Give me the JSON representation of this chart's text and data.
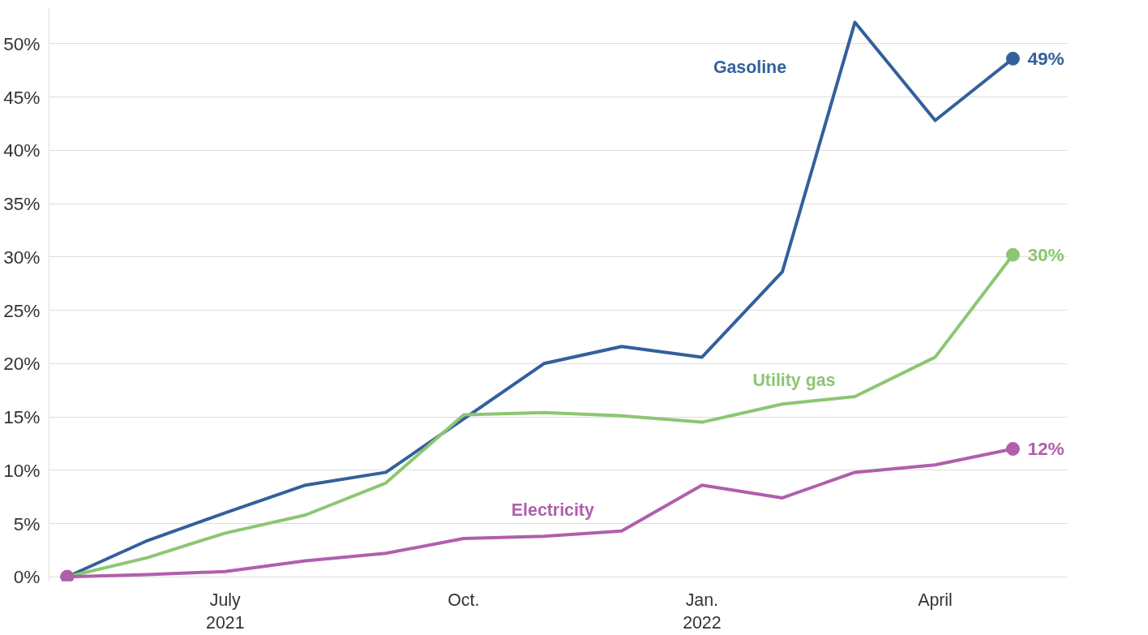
{
  "chart_data": {
    "type": "line",
    "x": [
      "2021-05",
      "2021-06",
      "2021-07",
      "2021-08",
      "2021-09",
      "2021-10",
      "2021-11",
      "2021-12",
      "2022-01",
      "2022-02",
      "2022-03",
      "2022-04",
      "2022-05"
    ],
    "series": [
      {
        "name": "Gasoline",
        "color": "#33609b",
        "values": [
          0,
          3.4,
          6.0,
          8.6,
          9.8,
          14.8,
          20.0,
          21.6,
          20.6,
          28.6,
          52.0,
          42.8,
          48.6
        ],
        "value_labels": [
          null,
          null,
          null,
          null,
          null,
          null,
          null,
          null,
          null,
          null,
          null,
          null,
          "49%"
        ]
      },
      {
        "name": "Utility gas",
        "color": "#8cc672",
        "values": [
          0,
          1.8,
          4.1,
          5.8,
          8.8,
          15.2,
          15.4,
          15.1,
          14.5,
          16.2,
          16.9,
          20.6,
          30.2
        ],
        "value_labels": [
          null,
          null,
          null,
          null,
          null,
          null,
          null,
          null,
          null,
          null,
          null,
          null,
          "30%"
        ]
      },
      {
        "name": "Electricity",
        "color": "#b05fab",
        "values": [
          0,
          0.2,
          0.5,
          1.5,
          2.2,
          3.6,
          3.8,
          4.3,
          8.6,
          7.4,
          9.8,
          10.5,
          12.0
        ],
        "value_labels": [
          null,
          null,
          null,
          null,
          null,
          null,
          null,
          null,
          null,
          null,
          null,
          null,
          "12%"
        ]
      }
    ],
    "xlim": [
      "2021-04-24",
      "2022-05-22"
    ],
    "xticks": [
      {
        "value": "2021-07",
        "label": "July\n2021"
      },
      {
        "value": "2021-10",
        "label": "Oct."
      },
      {
        "value": "2022-01",
        "label": "Jan.\n2022"
      },
      {
        "value": "2022-04",
        "label": "April"
      }
    ],
    "yticks": [
      {
        "value": 0,
        "label": "0%"
      },
      {
        "value": 5,
        "label": "5%"
      },
      {
        "value": 10,
        "label": "10%"
      },
      {
        "value": 15,
        "label": "15%"
      },
      {
        "value": 20,
        "label": "20%"
      },
      {
        "value": 25,
        "label": "25%"
      },
      {
        "value": 30,
        "label": "30%"
      },
      {
        "value": 35,
        "label": "35%"
      },
      {
        "value": 40,
        "label": "40%"
      },
      {
        "value": 45,
        "label": "45%"
      },
      {
        "value": 50,
        "label": "50%"
      }
    ],
    "ylim": [
      -0.4,
      53.3
    ],
    "grid": "y",
    "line_style": "solid"
  }
}
